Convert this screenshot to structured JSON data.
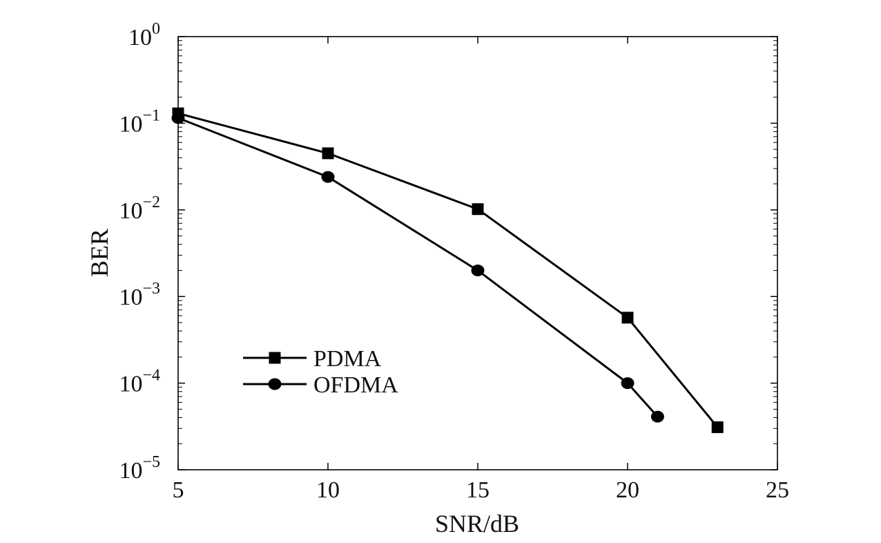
{
  "chart_data": {
    "type": "line",
    "xlabel": "SNR/dB",
    "ylabel": "BER",
    "xlim": [
      5,
      25
    ],
    "ylim": [
      1e-05,
      1
    ],
    "yscale": "log",
    "grid": false,
    "legend_position": "lower-left",
    "x_ticks": [
      5,
      10,
      15,
      20,
      25
    ],
    "x_tick_labels": [
      "5",
      "10",
      "15",
      "20",
      "25"
    ],
    "y_ticks": [
      {
        "value": 1,
        "base": "10",
        "exp": "0"
      },
      {
        "value": 0.1,
        "base": "10",
        "exp": "−1"
      },
      {
        "value": 0.01,
        "base": "10",
        "exp": "−2"
      },
      {
        "value": 0.001,
        "base": "10",
        "exp": "−3"
      },
      {
        "value": 0.0001,
        "base": "10",
        "exp": "−4"
      },
      {
        "value": 1e-05,
        "base": "10",
        "exp": "−5"
      }
    ],
    "series": [
      {
        "name": "PDMA",
        "marker": "square",
        "color": "#000000",
        "x": [
          5,
          10,
          15,
          20,
          23
        ],
        "y": [
          0.13,
          0.045,
          0.0102,
          0.00057,
          3.1e-05
        ]
      },
      {
        "name": "OFDMA",
        "marker": "circle",
        "color": "#000000",
        "x": [
          5,
          10,
          15,
          20,
          21
        ],
        "y": [
          0.115,
          0.024,
          0.002,
          0.0001,
          4.1e-05
        ]
      }
    ]
  }
}
